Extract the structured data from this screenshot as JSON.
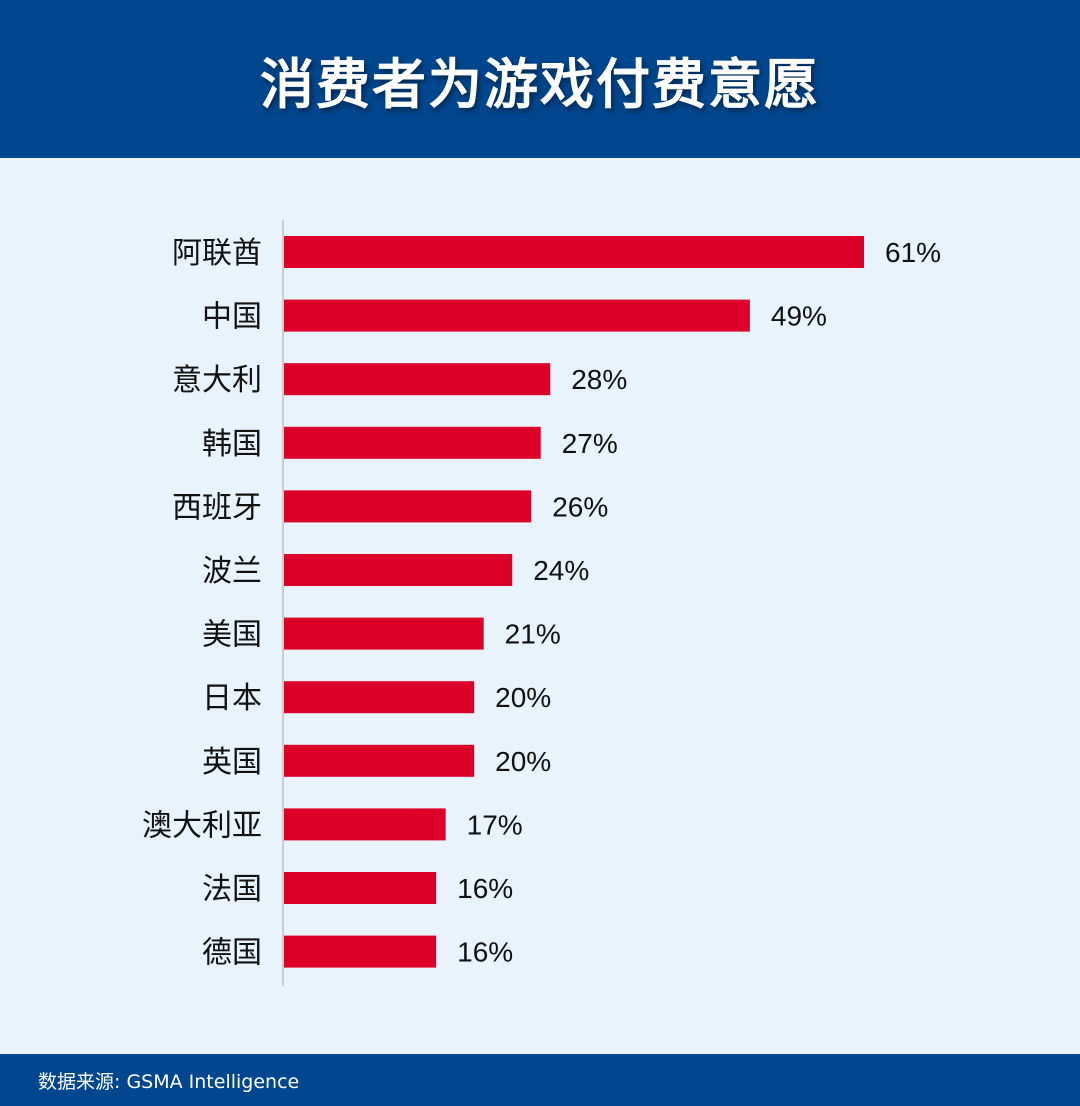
{
  "header": {
    "title": "消费者为游戏付费意愿"
  },
  "footer": {
    "source": "数据来源: GSMA Intelligence"
  },
  "colors": {
    "header_bg": "#00478f",
    "bar": "#dc0028",
    "background": "#e8f3fb"
  },
  "chart_data": {
    "type": "bar",
    "orientation": "horizontal",
    "title": "消费者为游戏付费意愿",
    "categories": [
      "阿联酋",
      "中国",
      "意大利",
      "韩国",
      "西班牙",
      "波兰",
      "美国",
      "日本",
      "英国",
      "澳大利亚",
      "法国",
      "德国"
    ],
    "values": [
      61,
      49,
      28,
      27,
      26,
      24,
      21,
      20,
      20,
      17,
      16,
      16
    ],
    "value_labels": [
      "61%",
      "49%",
      "28%",
      "27%",
      "26%",
      "24%",
      "21%",
      "20%",
      "20%",
      "17%",
      "16%",
      "16%"
    ],
    "unit": "%",
    "xlim": [
      0,
      61
    ],
    "grid": false,
    "legend": "none"
  }
}
